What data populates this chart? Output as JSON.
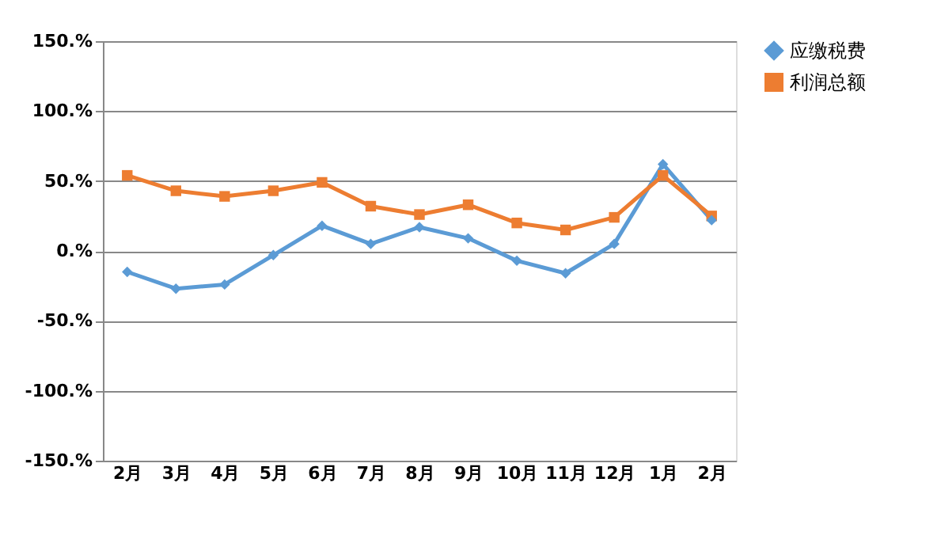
{
  "chart_data": {
    "type": "line",
    "categories": [
      "2月",
      "3月",
      "4月",
      "5月",
      "6月",
      "7月",
      "8月",
      "9月",
      "10月",
      "11月",
      "12月",
      "1月",
      "2月"
    ],
    "series": [
      {
        "name": "应缴税费",
        "color": "#5b9bd5",
        "marker": "diamond",
        "values": [
          -15,
          -27,
          -24,
          -3,
          18,
          5,
          17,
          9,
          -7,
          -16,
          5,
          62,
          22
        ]
      },
      {
        "name": "利润总额",
        "color": "#ed7d31",
        "marker": "square",
        "values": [
          54,
          43,
          39,
          43,
          49,
          32,
          26,
          33,
          20,
          15,
          24,
          54,
          25
        ]
      }
    ],
    "ylim": [
      -150,
      150
    ],
    "yticks": [
      {
        "value": -150,
        "label": "-150.%"
      },
      {
        "value": -100,
        "label": "-100.%"
      },
      {
        "value": -50,
        "label": "-50.%"
      },
      {
        "value": 0,
        "label": "0.%"
      },
      {
        "value": 50,
        "label": "50.%"
      },
      {
        "value": 100,
        "label": "100.%"
      },
      {
        "value": 150,
        "label": "150.%"
      }
    ],
    "grid": "y",
    "legend": "right"
  }
}
